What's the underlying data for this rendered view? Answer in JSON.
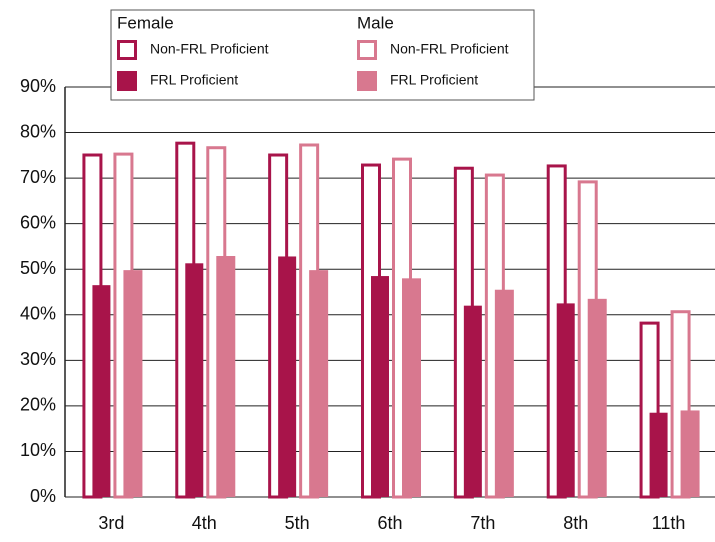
{
  "chart_data": {
    "type": "bar",
    "categories": [
      "3rd",
      "4th",
      "5th",
      "6th",
      "7th",
      "8th",
      "11th"
    ],
    "legend_groups": [
      "Female",
      "Male"
    ],
    "series": [
      {
        "name": "Non-FRL Proficient",
        "color": "#a8144a",
        "filled": false,
        "values": [
          75.4,
          78,
          75.4,
          73.2,
          72.5,
          73,
          38.5
        ]
      },
      {
        "name": "FRL Proficient",
        "color": "#a8144a",
        "filled": true,
        "values": [
          46.5,
          51.3,
          52.8,
          48.5,
          42,
          42.5,
          18.5
        ]
      },
      {
        "name": "Non-FRL Proficient",
        "color": "#d8788f",
        "filled": false,
        "values": [
          75.6,
          77,
          77.6,
          74.5,
          71,
          69.5,
          41
        ]
      },
      {
        "name": "FRL Proficient",
        "color": "#d8788f",
        "filled": true,
        "values": [
          49.8,
          52.9,
          49.8,
          48,
          45.5,
          43.5,
          19
        ]
      }
    ],
    "ylim": [
      0,
      90
    ],
    "yticks": [
      {
        "value": 0,
        "label": "0%"
      },
      {
        "value": 10,
        "label": "10%"
      },
      {
        "value": 20,
        "label": "20%"
      },
      {
        "value": 30,
        "label": "30%"
      },
      {
        "value": 40,
        "label": "40%"
      },
      {
        "value": 50,
        "label": "50%"
      },
      {
        "value": 60,
        "label": "60%"
      },
      {
        "value": 70,
        "label": "70%"
      },
      {
        "value": 80,
        "label": "80%"
      },
      {
        "value": 90,
        "label": "90%"
      }
    ],
    "grid": true
  }
}
